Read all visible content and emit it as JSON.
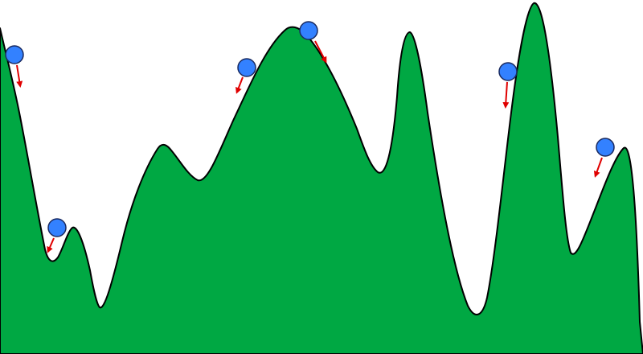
{
  "colors": {
    "background": "#ffffff",
    "terrain_fill": "#00a843",
    "terrain_stroke": "#000000",
    "ball_fill": "#3381ff",
    "ball_stroke": "#1a2a60",
    "arrow": "#e00000"
  },
  "terrain": {
    "name": "landscape-terrain"
  },
  "balls": [
    {
      "name": "ball-1",
      "arrow": "gradient-arrow-1"
    },
    {
      "name": "ball-2",
      "arrow": "gradient-arrow-2"
    },
    {
      "name": "ball-3",
      "arrow": "gradient-arrow-3"
    },
    {
      "name": "ball-4",
      "arrow": "gradient-arrow-4"
    },
    {
      "name": "ball-5",
      "arrow": "gradient-arrow-5"
    },
    {
      "name": "ball-6",
      "arrow": "gradient-arrow-6"
    }
  ]
}
